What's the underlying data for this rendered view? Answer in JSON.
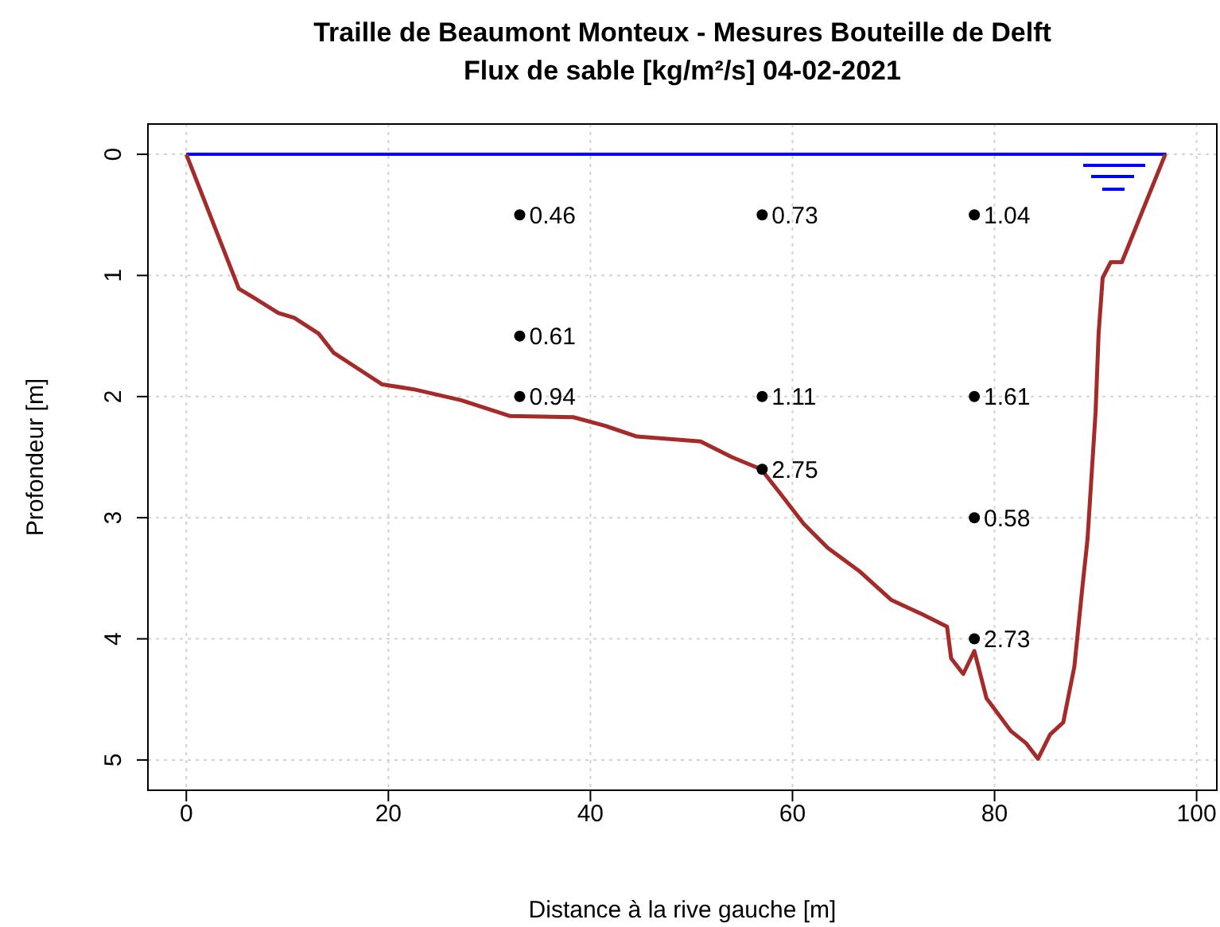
{
  "chart_data": {
    "type": "line",
    "title": "Traille de Beaumont Monteux - Mesures Bouteille de Delft",
    "subtitle": "Flux de sable [kg/m²/s] 04-02-2021",
    "xlabel": "Distance à la rive gauche [m]",
    "ylabel": "Profondeur [m]",
    "xlim": [
      -3.8,
      102
    ],
    "xticks": [
      0,
      20,
      40,
      60,
      80,
      100
    ],
    "ylim": [
      5.25,
      -0.25
    ],
    "yticks": [
      0,
      1,
      2,
      3,
      4,
      5
    ],
    "grid": true,
    "line_style": "solid",
    "series": [
      {
        "color": "#0000ff",
        "x": [
          0,
          97
        ],
        "values": [
          0,
          0
        ]
      },
      {
        "color": "#a52a2a",
        "x": [
          0,
          5.2,
          6.8,
          9.1,
          10.7,
          13.1,
          14.6,
          17,
          19.4,
          22.5,
          27.2,
          32,
          38.3,
          41.4,
          44.6,
          50.9,
          54,
          56.9,
          58.7,
          61.1,
          63.5,
          66.6,
          69.8,
          72.9,
          75.3,
          75.7,
          76.9,
          78,
          79.2,
          81.6,
          83.1,
          84.3,
          85.5,
          86.8,
          87.9,
          88.7,
          89.2,
          90,
          90.3,
          90.7,
          91.5,
          92.6,
          96.9
        ],
        "values": [
          0,
          1.11,
          1.19,
          1.31,
          1.35,
          1.48,
          1.64,
          1.77,
          1.9,
          1.94,
          2.03,
          2.16,
          2.17,
          2.24,
          2.33,
          2.37,
          2.5,
          2.6,
          2.79,
          3.05,
          3.25,
          3.44,
          3.68,
          3.8,
          3.9,
          4.16,
          4.29,
          4.1,
          4.49,
          4.76,
          4.86,
          4.99,
          4.79,
          4.69,
          4.23,
          3.57,
          3.18,
          2.13,
          1.48,
          1.02,
          0.89,
          0.89,
          0
        ]
      },
      {
        "type": "scatter",
        "color": "#000000",
        "marker": "circle",
        "x": [
          33,
          33,
          33,
          57,
          57,
          57,
          78,
          78,
          78,
          78
        ],
        "values": [
          0.5,
          1.5,
          2,
          0.5,
          2,
          2.6,
          0.5,
          2,
          3,
          4
        ]
      }
    ],
    "annotations": [
      {
        "text": "0.46",
        "x": 33,
        "y": 0.5
      },
      {
        "text": "0.61",
        "x": 33,
        "y": 1.5
      },
      {
        "text": "0.94",
        "x": 33,
        "y": 2
      },
      {
        "text": "0.73",
        "x": 57,
        "y": 0.5
      },
      {
        "text": "1.11",
        "x": 57,
        "y": 2
      },
      {
        "text": "2.75",
        "x": 57,
        "y": 2.6
      },
      {
        "text": "1.04",
        "x": 78,
        "y": 0.5
      },
      {
        "text": "1.61",
        "x": 78,
        "y": 2
      },
      {
        "text": "0.58",
        "x": 78,
        "y": 3
      },
      {
        "text": "2.73",
        "x": 78,
        "y": 4
      }
    ]
  }
}
